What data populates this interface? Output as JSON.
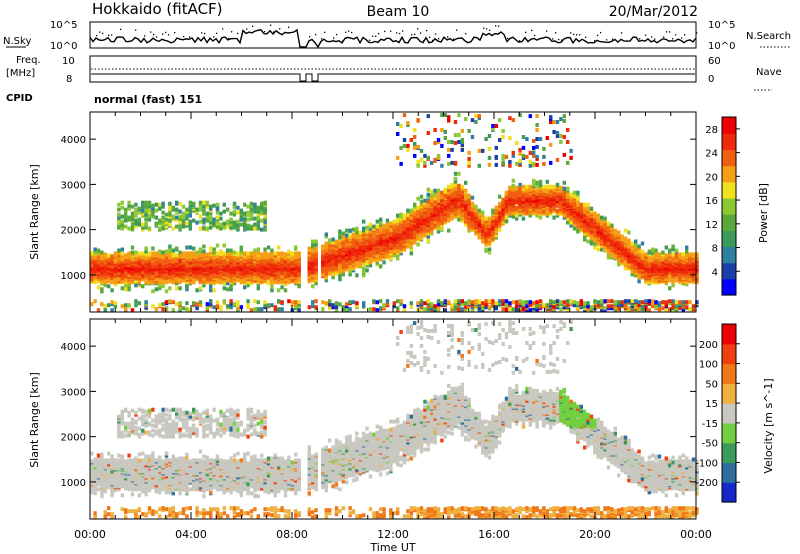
{
  "header": {
    "station": "Hokkaido (fitACF)",
    "beam": "Beam 10",
    "date": "20/Mar/2012"
  },
  "top_panels": {
    "nsky_label": "N.Sky",
    "nsky_ticks": [
      "10^5",
      "10^0"
    ],
    "nsearch_label": "N.Search",
    "nsearch_ticks": [
      "10^5",
      "10^0"
    ],
    "freq_label": "Freq.",
    "freq_unit": "[MHz]",
    "freq_ticks": [
      "10",
      "8"
    ],
    "nave_label": "Nave",
    "nave_ticks": [
      "60",
      "0"
    ],
    "cpid_label": "CPID",
    "cpid_value": "normal (fast) 151"
  },
  "chart_data": [
    {
      "type": "heatmap",
      "panel": "power",
      "title": "",
      "ylabel": "Slant Range [km]",
      "ylim": [
        180,
        4600
      ],
      "yticks": [
        1000,
        2000,
        3000,
        4000
      ],
      "xlim": [
        "00:00",
        "24:00"
      ],
      "colorbar": {
        "label": "Power [dB]",
        "ticks": [
          4,
          8,
          12,
          16,
          20,
          24,
          28
        ],
        "range": [
          0,
          30
        ],
        "colors": [
          "#0000ff",
          "#1a3fa8",
          "#2e7fa0",
          "#3d9a5a",
          "#5aa83c",
          "#8ac834",
          "#f0e020",
          "#f5a014",
          "#f06010",
          "#ef2a0a",
          "#ee0000"
        ]
      },
      "gaps_ut": [
        "08:15-08:35",
        "08:55-09:05"
      ]
    },
    {
      "type": "heatmap",
      "panel": "velocity",
      "title": "",
      "ylabel": "Slant Range [km]",
      "ylim": [
        180,
        4600
      ],
      "yticks": [
        1000,
        2000,
        3000,
        4000
      ],
      "xlim": [
        "00:00",
        "24:00"
      ],
      "colorbar": {
        "label": "Velocity [m s^-1]",
        "ticks": [
          200,
          100,
          50,
          15,
          -15,
          -50,
          -100,
          -200
        ],
        "colors": [
          "#1428c8",
          "#2d6ea0",
          "#3c9a5c",
          "#72d040",
          "#c8c8c0",
          "#f0b040",
          "#f07818",
          "#f04010",
          "#ee0000"
        ]
      },
      "gaps_ut": [
        "08:15-08:35",
        "08:55-09:05"
      ]
    }
  ],
  "xaxis": {
    "ticks": [
      "00:00",
      "04:00",
      "08:00",
      "12:00",
      "16:00",
      "20:00",
      "00:00"
    ],
    "label": "Time UT"
  },
  "colors": {
    "frame": "#000000",
    "velocity_grey": "#c8c8c0"
  }
}
